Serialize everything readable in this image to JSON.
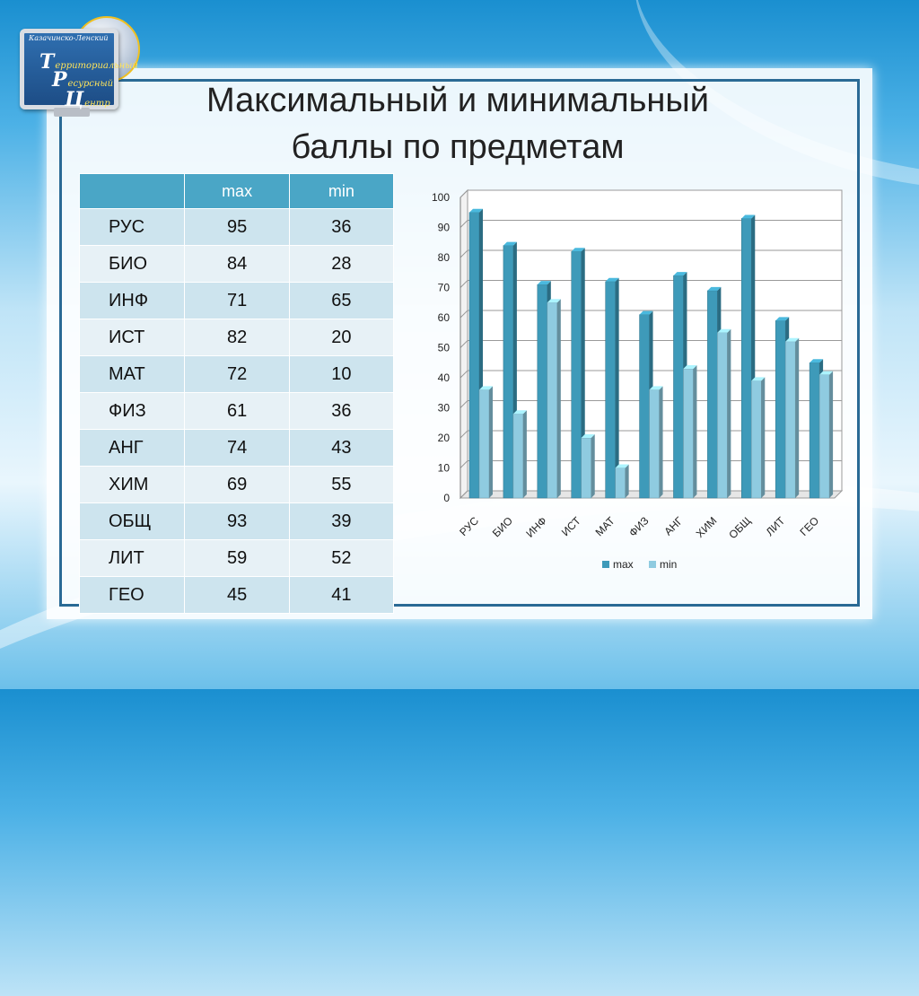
{
  "logo": {
    "top_text": "Казачинско-Ленский",
    "lines": [
      {
        "initial": "Т",
        "rest": "ерриториальный"
      },
      {
        "initial": "Р",
        "rest": "есурсный"
      },
      {
        "initial": "Ц",
        "rest": "ентр"
      }
    ]
  },
  "slide": {
    "title_line1": "Максимальный и минимальный",
    "title_line2": "баллы по предметам"
  },
  "table": {
    "headers": [
      "",
      "max",
      "min"
    ],
    "rows": [
      {
        "subject": "РУС",
        "max": "95",
        "min": "36"
      },
      {
        "subject": "БИО",
        "max": "84",
        "min": "28"
      },
      {
        "subject": "ИНФ",
        "max": "71",
        "min": "65"
      },
      {
        "subject": "ИСТ",
        "max": "82",
        "min": "20"
      },
      {
        "subject": "МАТ",
        "max": "72",
        "min": "10"
      },
      {
        "subject": "ФИЗ",
        "max": "61",
        "min": "36"
      },
      {
        "subject": "АНГ",
        "max": "74",
        "min": "43"
      },
      {
        "subject": "ХИМ",
        "max": "69",
        "min": "55"
      },
      {
        "subject": "ОБЩ",
        "max": "93",
        "min": "39"
      },
      {
        "subject": "ЛИТ",
        "max": "59",
        "min": "52"
      },
      {
        "subject": "ГЕО",
        "max": "45",
        "min": "41"
      }
    ]
  },
  "chart_data": {
    "type": "bar",
    "categories": [
      "РУС",
      "БИО",
      "ИНФ",
      "ИСТ",
      "МАТ",
      "ФИЗ",
      "АНГ",
      "ХИМ",
      "ОБЩ",
      "ЛИТ",
      "ГЕО"
    ],
    "series": [
      {
        "name": "max",
        "values": [
          95,
          84,
          71,
          82,
          72,
          61,
          74,
          69,
          93,
          59,
          45
        ],
        "color": "#3e9ab9"
      },
      {
        "name": "min",
        "values": [
          36,
          28,
          65,
          20,
          10,
          36,
          43,
          55,
          39,
          52,
          41
        ],
        "color": "#8fcbe0"
      }
    ],
    "yticks": [
      "0",
      "10",
      "20",
      "30",
      "40",
      "50",
      "60",
      "70",
      "80",
      "90",
      "100"
    ],
    "ylim": [
      0,
      100
    ],
    "grid": true,
    "legend": "bottom",
    "style": "3d-column"
  }
}
